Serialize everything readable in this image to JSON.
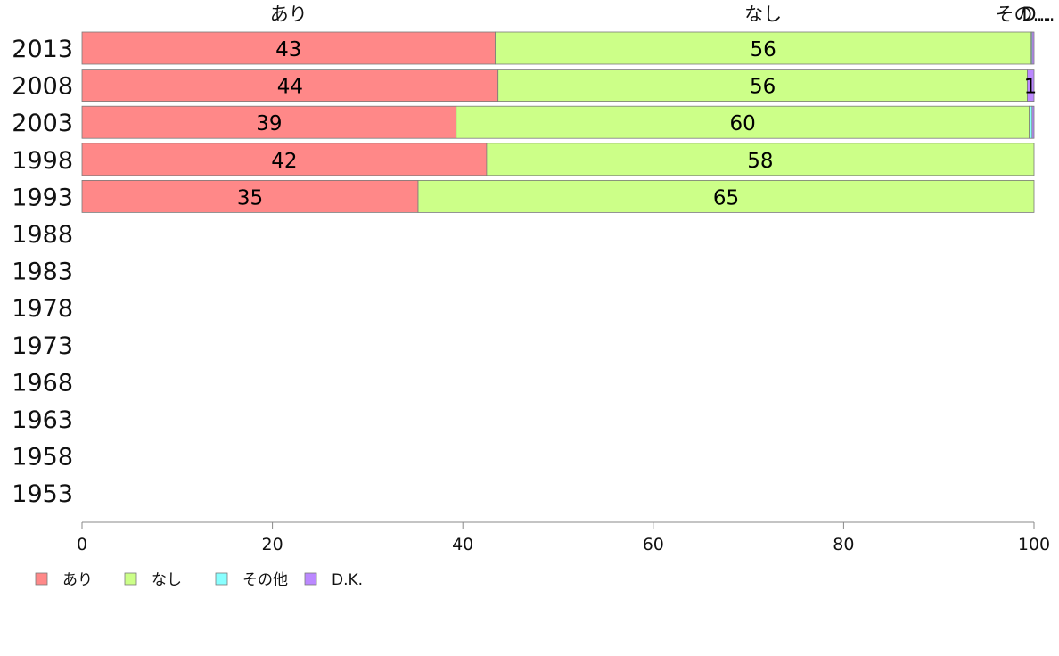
{
  "chart_data": {
    "type": "bar",
    "orientation": "horizontal",
    "stacked": true,
    "title": "",
    "xlabel": "",
    "ylabel": "",
    "xlim": [
      0,
      100
    ],
    "x_ticks": [
      "0",
      "20",
      "40",
      "60",
      "80",
      "100"
    ],
    "categories": [
      "2013",
      "2008",
      "2003",
      "1998",
      "1993",
      "1988",
      "1983",
      "1978",
      "1973",
      "1968",
      "1963",
      "1958",
      "1953"
    ],
    "series": [
      {
        "name": "あり",
        "color": "#ff8888",
        "values": [
          43.4,
          43.7,
          39.3,
          42.5,
          35.3,
          null,
          null,
          null,
          null,
          null,
          null,
          null,
          null
        ]
      },
      {
        "name": "なし",
        "color": "#ccff88",
        "values": [
          56.3,
          55.6,
          60.2,
          57.5,
          64.7,
          null,
          null,
          null,
          null,
          null,
          null,
          null,
          null
        ]
      },
      {
        "name": "その他",
        "color": "#88ffff",
        "values": [
          0.1,
          0,
          0.3,
          0,
          0,
          null,
          null,
          null,
          null,
          null,
          null,
          null,
          null
        ]
      },
      {
        "name": "D.K.",
        "color": "#bb88ff",
        "values": [
          0.2,
          0.7,
          0.2,
          0,
          0,
          null,
          null,
          null,
          null,
          null,
          null,
          null,
          null
        ]
      }
    ],
    "data_labels": {
      "2013": [
        "43",
        "56",
        "",
        ""
      ],
      "2008": [
        "44",
        "56",
        "",
        "1"
      ],
      "2003": [
        "39",
        "60",
        "",
        ""
      ],
      "1998": [
        "42",
        "58",
        "",
        ""
      ],
      "1993": [
        "35",
        "65",
        "",
        ""
      ]
    },
    "top_labels": [
      "あり",
      "なし",
      "その…",
      "D…"
    ],
    "legend_position": "bottom-left",
    "grid": false
  }
}
